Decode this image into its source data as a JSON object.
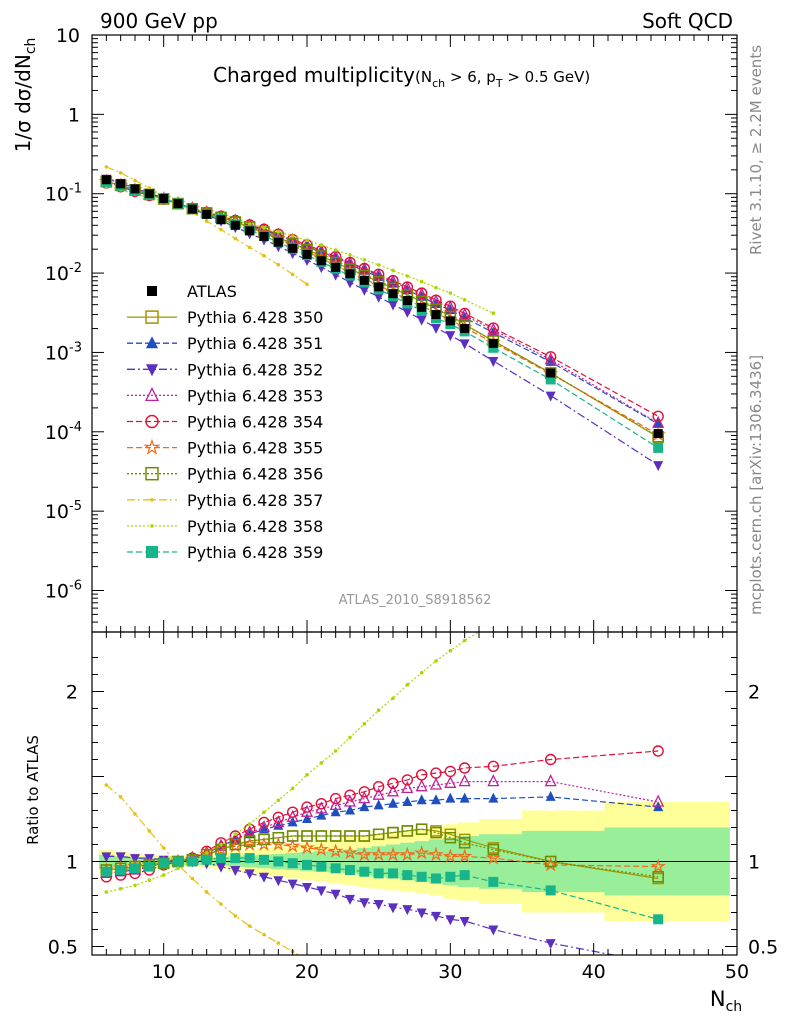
{
  "header": {
    "left": "900 GeV pp",
    "right": "Soft QCD"
  },
  "side": {
    "rivet": "Rivet 3.1.10, ≥ 2.2M events",
    "mcplots": "mcplots.cern.ch [arXiv:1306.3436]"
  },
  "analysis_id": "ATLAS_2010_S8918562",
  "chart_data": [
    {
      "type": "line",
      "title": "Charged multiplicity (N_ch > 6, p_T > 0.5 GeV)",
      "xlabel": "N_ch",
      "ylabel": "1/σ dσ/dN_ch",
      "xlim": [
        5,
        50
      ],
      "ylim": [
        3e-07,
        10
      ],
      "yscale": "log",
      "xticks": [
        10,
        20,
        30,
        40,
        50
      ],
      "yticks": [
        {
          "value": 10,
          "label": "10"
        },
        {
          "value": 1,
          "label": "1"
        },
        {
          "value": 0.1,
          "label": "10^-1"
        },
        {
          "value": 0.01,
          "label": "10^-2"
        },
        {
          "value": 0.001,
          "label": "10^-3"
        },
        {
          "value": 0.0001,
          "label": "10^-4"
        },
        {
          "value": 1e-05,
          "label": "10^-5"
        },
        {
          "value": 1e-06,
          "label": "10^-6"
        }
      ],
      "legend_position": "left",
      "data_x": [
        6,
        7,
        8,
        9,
        10,
        11,
        12,
        13,
        14,
        15,
        16,
        17,
        18,
        19,
        20,
        21,
        22,
        23,
        24,
        25,
        26,
        27,
        28,
        29,
        30,
        31,
        33,
        37,
        44.5
      ],
      "data_y": [
        0.15,
        0.133,
        0.115,
        0.1,
        0.087,
        0.075,
        0.064,
        0.055,
        0.047,
        0.04,
        0.034,
        0.029,
        0.0245,
        0.0205,
        0.0172,
        0.0143,
        0.0118,
        0.0098,
        0.0081,
        0.0067,
        0.0055,
        0.0045,
        0.0037,
        0.003,
        0.0025,
        0.002,
        0.0013,
        0.00055,
        9.5e-05
      ],
      "series": [
        {
          "name": "ATLAS",
          "color": "#000000",
          "marker": "square-filled"
        },
        {
          "name": "Pythia 6.428 350",
          "color": "#a69500",
          "marker": "square-open",
          "dash": "solid"
        },
        {
          "name": "Pythia 6.428 351",
          "color": "#1f4fbf",
          "marker": "triangle-up",
          "dash": "dashed"
        },
        {
          "name": "Pythia 6.428 352",
          "color": "#5b2fbf",
          "marker": "triangle-down",
          "dash": "dashdot"
        },
        {
          "name": "Pythia 6.428 353",
          "color": "#c0209c",
          "marker": "triangle-open",
          "dash": "dotted"
        },
        {
          "name": "Pythia 6.428 354",
          "color": "#e0103a",
          "marker": "circle-open",
          "dash": "dashed"
        },
        {
          "name": "Pythia 6.428 355",
          "color": "#f06a1a",
          "marker": "star-open",
          "dash": "dashed"
        },
        {
          "name": "Pythia 6.428 356",
          "color": "#6e8c00",
          "marker": "square-open",
          "dash": "dotted"
        },
        {
          "name": "Pythia 6.428 357",
          "color": "#e5c014",
          "marker": "dot",
          "dash": "dashdot"
        },
        {
          "name": "Pythia 6.428 358",
          "color": "#a8d800",
          "marker": "dot",
          "dash": "dotted"
        },
        {
          "name": "Pythia 6.428 359",
          "color": "#19b58a",
          "marker": "square-filled",
          "dash": "dashed"
        }
      ]
    },
    {
      "type": "line",
      "ylabel": "Ratio to ATLAS",
      "xlabel": "N_ch",
      "xlim": [
        5,
        50
      ],
      "ylim": [
        0.45,
        2.35
      ],
      "xticks": [
        10,
        20,
        30,
        40,
        50
      ],
      "yticks": [
        0.5,
        1,
        2
      ],
      "x": [
        6,
        7,
        8,
        9,
        10,
        11,
        12,
        13,
        14,
        15,
        16,
        17,
        18,
        19,
        20,
        21,
        22,
        23,
        24,
        25,
        26,
        27,
        28,
        29,
        30,
        31,
        33,
        37,
        44.5
      ],
      "band_inner": [
        0.04,
        0.03,
        0.025,
        0.02,
        0.02,
        0.02,
        0.02,
        0.02,
        0.025,
        0.03,
        0.035,
        0.04,
        0.045,
        0.05,
        0.055,
        0.06,
        0.065,
        0.07,
        0.08,
        0.09,
        0.1,
        0.11,
        0.12,
        0.13,
        0.14,
        0.15,
        0.16,
        0.18,
        0.2
      ],
      "band_outer": [
        0.07,
        0.06,
        0.05,
        0.04,
        0.035,
        0.03,
        0.03,
        0.035,
        0.045,
        0.06,
        0.07,
        0.08,
        0.09,
        0.1,
        0.11,
        0.12,
        0.13,
        0.14,
        0.15,
        0.16,
        0.17,
        0.18,
        0.19,
        0.2,
        0.22,
        0.23,
        0.25,
        0.3,
        0.35
      ],
      "ratios": [
        [
          0.95,
          0.96,
          0.97,
          0.98,
          0.99,
          1.0,
          1.01,
          1.04,
          1.07,
          1.1,
          1.12,
          1.13,
          1.14,
          1.15,
          1.15,
          1.15,
          1.15,
          1.15,
          1.15,
          1.16,
          1.17,
          1.18,
          1.19,
          1.18,
          1.16,
          1.13,
          1.08,
          1.0,
          0.9
        ],
        [
          0.93,
          0.94,
          0.95,
          0.97,
          0.99,
          1.0,
          1.02,
          1.05,
          1.09,
          1.13,
          1.16,
          1.19,
          1.21,
          1.23,
          1.25,
          1.27,
          1.29,
          1.3,
          1.32,
          1.33,
          1.34,
          1.35,
          1.36,
          1.36,
          1.37,
          1.37,
          1.37,
          1.38,
          1.32
        ],
        [
          1.03,
          1.03,
          1.02,
          1.02,
          1.01,
          1.0,
          1.0,
          0.99,
          0.97,
          0.95,
          0.93,
          0.91,
          0.89,
          0.87,
          0.85,
          0.83,
          0.81,
          0.78,
          0.76,
          0.75,
          0.73,
          0.72,
          0.7,
          0.68,
          0.66,
          0.65,
          0.6,
          0.52,
          0.4
        ],
        [
          0.93,
          0.94,
          0.95,
          0.97,
          0.99,
          1.0,
          1.02,
          1.05,
          1.09,
          1.13,
          1.17,
          1.2,
          1.23,
          1.26,
          1.29,
          1.31,
          1.33,
          1.35,
          1.37,
          1.39,
          1.41,
          1.43,
          1.44,
          1.45,
          1.46,
          1.47,
          1.47,
          1.47,
          1.35
        ],
        [
          0.91,
          0.92,
          0.93,
          0.95,
          0.98,
          1.0,
          1.02,
          1.06,
          1.11,
          1.15,
          1.19,
          1.23,
          1.26,
          1.29,
          1.32,
          1.34,
          1.37,
          1.39,
          1.41,
          1.44,
          1.46,
          1.48,
          1.51,
          1.52,
          1.53,
          1.55,
          1.56,
          1.6,
          1.65
        ],
        [
          0.95,
          0.96,
          0.97,
          0.98,
          0.99,
          1.0,
          1.01,
          1.04,
          1.07,
          1.09,
          1.1,
          1.1,
          1.1,
          1.09,
          1.08,
          1.07,
          1.06,
          1.05,
          1.04,
          1.04,
          1.04,
          1.04,
          1.05,
          1.04,
          1.03,
          1.03,
          1.02,
          0.98,
          0.97
        ],
        [
          0.95,
          0.96,
          0.97,
          0.98,
          0.99,
          1.0,
          1.01,
          1.04,
          1.07,
          1.1,
          1.12,
          1.13,
          1.14,
          1.15,
          1.15,
          1.15,
          1.15,
          1.15,
          1.15,
          1.16,
          1.17,
          1.18,
          1.19,
          1.17,
          1.14,
          1.11,
          1.07,
          1.0,
          0.91
        ],
        [
          1.45,
          1.38,
          1.28,
          1.18,
          1.08,
          0.98,
          0.9,
          0.82,
          0.75,
          0.68,
          0.62,
          0.57,
          0.52,
          0.47,
          0.42
        ],
        [
          0.82,
          0.84,
          0.86,
          0.89,
          0.92,
          0.96,
          1.0,
          1.05,
          1.1,
          1.16,
          1.22,
          1.29,
          1.36,
          1.43,
          1.51,
          1.58,
          1.65,
          1.73,
          1.81,
          1.89,
          1.96,
          2.04,
          2.11,
          2.18,
          2.24,
          2.3,
          2.4
        ],
        [
          0.94,
          0.95,
          0.96,
          0.97,
          0.99,
          1.0,
          1.0,
          1.01,
          1.02,
          1.02,
          1.02,
          1.01,
          1.0,
          0.99,
          0.98,
          0.97,
          0.96,
          0.95,
          0.94,
          0.93,
          0.93,
          0.92,
          0.91,
          0.9,
          0.91,
          0.92,
          0.88,
          0.83,
          0.66
        ]
      ]
    }
  ]
}
